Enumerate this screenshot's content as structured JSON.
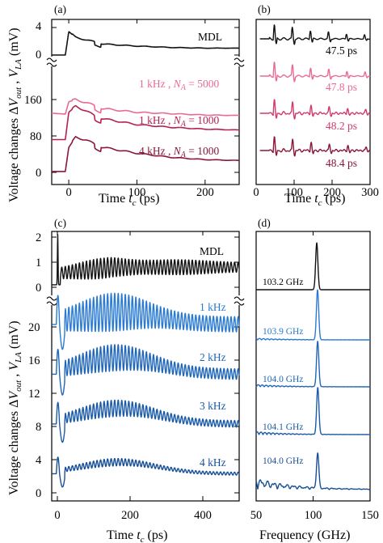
{
  "colors": {
    "black": "#111111",
    "pink": "#ea6a96",
    "rose": "#d23a6c",
    "crimson": "#b51f55",
    "maroon": "#8a1639",
    "blue1": "#2a7ad3",
    "blue2": "#1f66bb",
    "blue3": "#1a5aa8",
    "blue4": "#174f96"
  },
  "chart_data": [
    {
      "panel": "(a)",
      "type": "line",
      "xlabel_text": "Time",
      "xlabel_var": "t",
      "xlabel_sub": "c",
      "xlabel_unit": "(ps)",
      "ylabel": "Voltage changes ΔV_out , V_LA (mV)",
      "xlim": [
        -25,
        250
      ],
      "xticks": [
        "0",
        "100",
        "200"
      ],
      "upper_ylim": [
        0,
        4
      ],
      "upper_yticks": [
        "0",
        "4"
      ],
      "lower_ylim": [
        0,
        215
      ],
      "lower_yticks": [
        "0",
        "80",
        "160"
      ],
      "series": [
        {
          "name": "MDL",
          "x": [
            -25,
            -5,
            0,
            10,
            25,
            40,
            50,
            100,
            150,
            200,
            250
          ],
          "values": [
            0,
            0,
            3.4,
            2.6,
            2.2,
            1.9,
            1.6,
            1.3,
            1.1,
            1.0,
            1.0
          ]
        },
        {
          "name": "1 kHz , N_A = 5000",
          "x": [
            -25,
            -5,
            0,
            10,
            25,
            40,
            50,
            100,
            150,
            200,
            250
          ],
          "values": [
            130,
            128,
            155,
            160,
            154,
            145,
            140,
            132,
            129,
            126,
            125
          ]
        },
        {
          "name": "1 kHz , N_A = 1000",
          "x": [
            -25,
            -5,
            0,
            10,
            25,
            40,
            50,
            100,
            150,
            200,
            250
          ],
          "values": [
            72,
            72,
            132,
            145,
            136,
            122,
            118,
            105,
            99,
            95,
            93
          ]
        },
        {
          "name": "4 kHz , N_A = 1000",
          "x": [
            -25,
            -5,
            0,
            10,
            25,
            40,
            50,
            100,
            150,
            200,
            250
          ],
          "values": [
            2,
            2,
            55,
            77,
            72,
            60,
            55,
            42,
            33,
            28,
            26
          ]
        }
      ]
    },
    {
      "panel": "(b)",
      "type": "line",
      "xlabel_text": "Time",
      "xlabel_var": "t",
      "xlabel_sub": "c",
      "xlabel_unit": "(ps)",
      "xlim": [
        0,
        300
      ],
      "xticks": [
        "0",
        "100",
        "200",
        "300"
      ],
      "series": [
        {
          "name": "47.5 ps",
          "values": []
        },
        {
          "name": "47.8 ps",
          "values": []
        },
        {
          "name": "48.2 ps",
          "values": []
        },
        {
          "name": "48.4 ps",
          "values": []
        }
      ]
    },
    {
      "panel": "(c)",
      "type": "line",
      "xlabel_text": "Time",
      "xlabel_var": "t",
      "xlabel_sub": "c",
      "xlabel_unit": "(ps)",
      "ylabel": "Voltage changes ΔV_out , V_LA (mV)",
      "xlim": [
        -15,
        500
      ],
      "xticks": [
        "0",
        "200",
        "400"
      ],
      "upper_ylim": [
        0,
        2
      ],
      "upper_yticks": [
        "0",
        "1",
        "2"
      ],
      "lower_ylim": [
        0,
        24
      ],
      "lower_yticks": [
        "0",
        "4",
        "8",
        "12",
        "16",
        "20"
      ],
      "oscillation_period_ps": 9.7,
      "series": [
        {
          "name": "MDL",
          "baseline": 0.1,
          "offset_late": 0.7
        },
        {
          "name": "1 kHz",
          "baseline": 20.3
        },
        {
          "name": "2 kHz",
          "baseline": 14.3
        },
        {
          "name": "3 kHz",
          "baseline": 8.3
        },
        {
          "name": "4 kHz",
          "baseline": 2.3
        }
      ]
    },
    {
      "panel": "(d)",
      "type": "line",
      "xlabel_text": "Frequency (GHz)",
      "xlim": [
        50,
        150
      ],
      "xticks": [
        "50",
        "100",
        "150"
      ],
      "series": [
        {
          "name": "103.2 GHz",
          "peak": 103.2
        },
        {
          "name": "103.9 GHz",
          "peak": 103.9
        },
        {
          "name": "104.0 GHz",
          "peak": 104.0
        },
        {
          "name": "104.1 GHz",
          "peak": 104.1
        },
        {
          "name": "104.0 GHz",
          "peak": 104.0
        }
      ]
    }
  ],
  "labels": {
    "panel_a": "(a)",
    "panel_b": "(b)",
    "panel_c": "(c)",
    "panel_d": "(d)",
    "a_mdl": "MDL",
    "a_s1": "1 kHz , ",
    "a_s1_na": "N",
    "a_s1_sub": "A",
    "a_s1_val": " = 5000",
    "a_s2": "1 kHz , ",
    "a_s2_na": "N",
    "a_s2_sub": "A",
    "a_s2_val": " = 1000",
    "a_s3": "4 kHz , ",
    "a_s3_na": "N",
    "a_s3_sub": "A",
    "a_s3_val": " = 1000",
    "b_1": "47.5 ps",
    "b_2": "47.8 ps",
    "b_3": "48.2 ps",
    "b_4": "48.4 ps",
    "c_mdl": "MDL",
    "c_1": "1 kHz",
    "c_2": "2 kHz",
    "c_3": "3 kHz",
    "c_4": "4 kHz",
    "d_1": "103.2 GHz",
    "d_2": "103.9 GHz",
    "d_3": "104.0 GHz",
    "d_4": "104.1 GHz",
    "d_5": "104.0 GHz",
    "ylabel_main": "Voltage changes Δ",
    "ylabel_v": "V",
    "ylabel_out": "out",
    "ylabel_sep": " , ",
    "ylabel_la": "LA",
    "ylabel_unit": " (mV)",
    "x_time": "Time ",
    "x_t": "t",
    "x_c": "c",
    "x_ps": " (ps)",
    "x_freq": "Frequency (GHz)",
    "tick_a_u4": "4",
    "tick_a_u0": "0",
    "tick_a_160": "160",
    "tick_a_80": "80",
    "tick_a_0": "0",
    "tick_c_2": "2",
    "tick_c_1": "1",
    "tick_c_0u": "0",
    "tick_c_20": "20",
    "tick_c_16": "16",
    "tick_c_12": "12",
    "tick_c_8": "8",
    "tick_c_4": "4",
    "tick_c_0": "0"
  }
}
